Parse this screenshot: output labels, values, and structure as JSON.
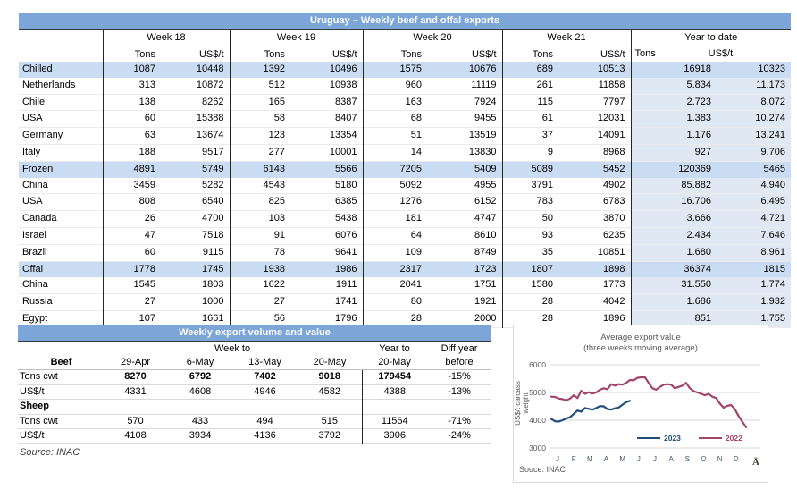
{
  "colors": {
    "header_bar": "#7da6d8",
    "section_row": "#c9dcf2",
    "ytd_column": "#dfe8f3",
    "line_2023": "#1f4e79",
    "line_2022": "#a2456b"
  },
  "main_table": {
    "title": "Uruguay – Weekly beef and offal exports",
    "week_headers": [
      "Week 18",
      "Week 19",
      "Week 20",
      "Week 21"
    ],
    "ytd_header": "Year to date",
    "unit_tons": "Tons",
    "unit_usd": "US$/t",
    "rows": [
      {
        "label": "Chilled",
        "bold": true,
        "values": [
          "1087",
          "10448",
          "1392",
          "10496",
          "1575",
          "10676",
          "689",
          "10513",
          "16918",
          "10323"
        ]
      },
      {
        "label": "Netherlands",
        "values": [
          "313",
          "10872",
          "512",
          "10938",
          "960",
          "11119",
          "261",
          "11858",
          "5.834",
          "11.173"
        ]
      },
      {
        "label": "Chile",
        "values": [
          "138",
          "8262",
          "165",
          "8387",
          "163",
          "7924",
          "115",
          "7797",
          "2.723",
          "8.072"
        ]
      },
      {
        "label": "USA",
        "values": [
          "60",
          "15388",
          "58",
          "8407",
          "68",
          "9455",
          "61",
          "12031",
          "1.383",
          "10.274"
        ]
      },
      {
        "label": "Germany",
        "values": [
          "63",
          "13674",
          "123",
          "13354",
          "51",
          "13519",
          "37",
          "14091",
          "1.176",
          "13.241"
        ]
      },
      {
        "label": "Italy",
        "values": [
          "188",
          "9517",
          "277",
          "10001",
          "14",
          "13830",
          "9",
          "8968",
          "927",
          "9.706"
        ]
      },
      {
        "label": "Frozen",
        "bold": true,
        "values": [
          "4891",
          "5749",
          "6143",
          "5566",
          "7205",
          "5409",
          "5089",
          "5452",
          "120369",
          "5465"
        ]
      },
      {
        "label": "China",
        "values": [
          "3459",
          "5282",
          "4543",
          "5180",
          "5092",
          "4955",
          "3791",
          "4902",
          "85.882",
          "4.940"
        ]
      },
      {
        "label": "USA",
        "values": [
          "808",
          "6540",
          "825",
          "6385",
          "1276",
          "6152",
          "783",
          "6783",
          "16.706",
          "6.495"
        ]
      },
      {
        "label": "Canada",
        "values": [
          "26",
          "4700",
          "103",
          "5438",
          "181",
          "4747",
          "50",
          "3870",
          "3.666",
          "4.721"
        ]
      },
      {
        "label": "Israel",
        "values": [
          "47",
          "7518",
          "91",
          "6076",
          "64",
          "8610",
          "93",
          "6235",
          "2.434",
          "7.646"
        ]
      },
      {
        "label": "Brazil",
        "values": [
          "60",
          "9115",
          "78",
          "9641",
          "109",
          "8749",
          "35",
          "10851",
          "1.680",
          "8.961"
        ]
      },
      {
        "label": "Offal",
        "bold": true,
        "values": [
          "1778",
          "1745",
          "1938",
          "1986",
          "2317",
          "1723",
          "1807",
          "1898",
          "36374",
          "1815"
        ]
      },
      {
        "label": "China",
        "values": [
          "1545",
          "1803",
          "1622",
          "1911",
          "2041",
          "1751",
          "1580",
          "1773",
          "31.550",
          "1.774"
        ]
      },
      {
        "label": "Russia",
        "values": [
          "27",
          "1000",
          "27",
          "1741",
          "80",
          "1921",
          "28",
          "4042",
          "1.686",
          "1.932"
        ]
      },
      {
        "label": "Egypt",
        "values": [
          "107",
          "1661",
          "56",
          "1796",
          "28",
          "2000",
          "28",
          "1896",
          "851",
          "1.755"
        ]
      }
    ]
  },
  "weekly_table": {
    "title": "Weekly export volume and value",
    "week_to_header": "Week to",
    "year_to_header": "Year to",
    "diff_header_line1": "Diff year",
    "diff_header_line2": "before",
    "beef_label": "Beef",
    "col_headers": [
      "29-Apr",
      "6-May",
      "13-May",
      "20-May",
      "20-May"
    ],
    "rows": [
      {
        "label": "Tons cwt",
        "bold_values": true,
        "values": [
          "8270",
          "6792",
          "7402",
          "9018",
          "179454",
          "-15%"
        ]
      },
      {
        "label": "US$/t",
        "values": [
          "4331",
          "4608",
          "4946",
          "4582",
          "4388",
          "-13%"
        ]
      },
      {
        "label": "Sheep",
        "bold": true,
        "values": [
          "",
          "",
          "",
          "",
          "",
          ""
        ]
      },
      {
        "label": "Tons cwt",
        "values": [
          "570",
          "433",
          "494",
          "515",
          "11564",
          "-71%"
        ]
      },
      {
        "label": "US$/t",
        "values": [
          "4108",
          "3934",
          "4136",
          "3792",
          "3906",
          "-24%"
        ]
      }
    ],
    "source": "Source: INAC"
  },
  "chart_data": {
    "type": "line",
    "title": "Average export value",
    "subtitle": "(three weeks moving average)",
    "ylabel": "US$/t carcass weight",
    "ylim": [
      3000,
      6000
    ],
    "yticks": [
      6000,
      5000,
      4000,
      3000
    ],
    "x_tick_labels": [
      "J",
      "F",
      "M",
      "A",
      "M",
      "J",
      "J",
      "A",
      "S",
      "O",
      "N",
      "D"
    ],
    "x_unit": "week of year",
    "grid": "horizontal",
    "legend_position": "bottom-center-inside",
    "source": "Souce: INAC",
    "corner_glyph": "Ā",
    "series": [
      {
        "name": "2023",
        "color": "#1f4e79",
        "start_week": 1,
        "values": [
          4050,
          3960,
          3950,
          4000,
          4060,
          4110,
          4230,
          4350,
          4310,
          4440,
          4410,
          4380,
          4440,
          4510,
          4500,
          4400,
          4380,
          4430,
          4460,
          4560,
          4650,
          4700
        ]
      },
      {
        "name": "2022",
        "color": "#a2456b",
        "start_week": 1,
        "values": [
          4850,
          4840,
          4780,
          4760,
          4720,
          4780,
          4900,
          4800,
          5060,
          4950,
          5010,
          4960,
          5000,
          5100,
          5150,
          5120,
          5300,
          5250,
          5300,
          5280,
          5350,
          5450,
          5440,
          5530,
          5550,
          5550,
          5350,
          5150,
          5100,
          5200,
          5280,
          5300,
          5280,
          5150,
          5200,
          5250,
          5350,
          5150,
          5050,
          5000,
          4950,
          4900,
          4950,
          4850,
          4800,
          4600,
          4450,
          4520,
          4550,
          4400,
          4150,
          3950,
          3750
        ]
      }
    ]
  }
}
